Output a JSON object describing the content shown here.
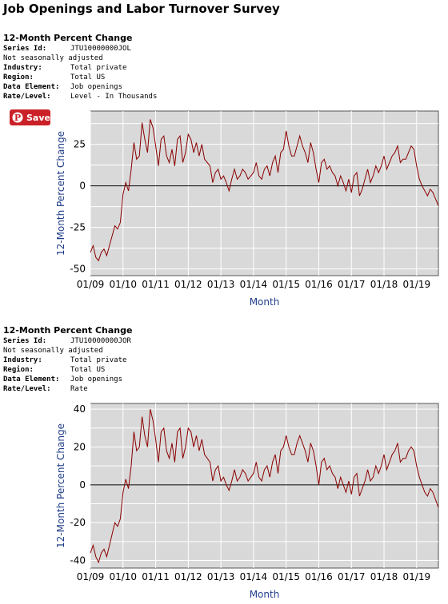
{
  "page": {
    "title": "Job Openings and Labor Turnover Survey"
  },
  "save_button": {
    "label": "Save",
    "icon": "pinterest-icon",
    "color": "#cb2027"
  },
  "sections": [
    {
      "title": "12-Month Percent Change",
      "meta": [
        {
          "key": "Series Id:",
          "value": "JTU10000000JOL"
        },
        {
          "key": "Not seasonally adjusted",
          "value": ""
        },
        {
          "key": "Industry:",
          "value": "Total private"
        },
        {
          "key": "Region:",
          "value": "Total US"
        },
        {
          "key": "Data Element:",
          "value": "Job openings"
        },
        {
          "key": "Rate/Level:",
          "value": "Level - In Thousands"
        }
      ]
    },
    {
      "title": "12-Month Percent Change",
      "meta": [
        {
          "key": "Series Id:",
          "value": "JTU10000000JOR"
        },
        {
          "key": "Not seasonally adjusted",
          "value": ""
        },
        {
          "key": "Industry:",
          "value": "Total private"
        },
        {
          "key": "Region:",
          "value": "Total US"
        },
        {
          "key": "Data Element:",
          "value": "Job openings"
        },
        {
          "key": "Rate/Level:",
          "value": "Rate"
        }
      ]
    }
  ],
  "chart_data": [
    {
      "type": "line",
      "xlabel": "Month",
      "ylabel": "12-Month Percent Change",
      "x_ticks": [
        "01/09",
        "01/10",
        "01/11",
        "01/12",
        "01/13",
        "01/14",
        "01/15",
        "01/16",
        "01/17",
        "01/18",
        "01/19"
      ],
      "x_start": "2009-01",
      "y_ticks": [
        -50,
        -25,
        0,
        25
      ],
      "ylim": [
        -54,
        45
      ],
      "grid": true,
      "background": "#d9d9d9",
      "line_color": "#8b0000",
      "series": [
        {
          "values": [
            -40,
            -36,
            -43,
            -45,
            -40,
            -38,
            -42,
            -36,
            -30,
            -24,
            -26,
            -22,
            -5,
            2,
            -3,
            10,
            26,
            16,
            18,
            38,
            28,
            20,
            40,
            35,
            24,
            12,
            28,
            30,
            18,
            14,
            22,
            12,
            28,
            30,
            14,
            20,
            31,
            28,
            20,
            26,
            18,
            25,
            16,
            14,
            12,
            2,
            8,
            10,
            4,
            6,
            2,
            -3,
            4,
            10,
            4,
            6,
            10,
            8,
            4,
            6,
            8,
            14,
            6,
            4,
            10,
            12,
            6,
            14,
            18,
            8,
            20,
            22,
            33,
            24,
            18,
            18,
            24,
            30,
            24,
            20,
            14,
            26,
            20,
            10,
            2,
            14,
            16,
            10,
            12,
            8,
            6,
            0,
            6,
            2,
            -3,
            4,
            -4,
            6,
            8,
            -6,
            -2,
            4,
            10,
            2,
            6,
            12,
            8,
            12,
            18,
            10,
            14,
            18,
            20,
            24,
            14,
            16,
            16,
            20,
            24,
            22,
            12,
            4,
            0,
            -3,
            -6,
            -2,
            -4,
            -8,
            -12
          ]
        }
      ]
    },
    {
      "type": "line",
      "xlabel": "Month",
      "ylabel": "12-Month Percent Change",
      "x_ticks": [
        "01/09",
        "01/10",
        "01/11",
        "01/12",
        "01/13",
        "01/14",
        "01/15",
        "01/16",
        "01/17",
        "01/18",
        "01/19"
      ],
      "x_start": "2009-01",
      "y_ticks": [
        -40,
        -20,
        0,
        20,
        40
      ],
      "ylim": [
        -44,
        43
      ],
      "grid": true,
      "background": "#d9d9d9",
      "line_color": "#8b0000",
      "series": [
        {
          "values": [
            -36,
            -32,
            -38,
            -41,
            -36,
            -34,
            -38,
            -32,
            -26,
            -20,
            -22,
            -18,
            -4,
            3,
            -2,
            10,
            28,
            18,
            20,
            36,
            26,
            20,
            40,
            34,
            24,
            12,
            28,
            30,
            18,
            14,
            22,
            12,
            28,
            30,
            14,
            20,
            30,
            28,
            20,
            26,
            18,
            24,
            16,
            14,
            12,
            2,
            8,
            10,
            2,
            4,
            0,
            -3,
            2,
            8,
            2,
            4,
            8,
            6,
            2,
            4,
            6,
            12,
            4,
            2,
            8,
            10,
            4,
            12,
            16,
            6,
            18,
            20,
            26,
            20,
            16,
            16,
            22,
            26,
            22,
            18,
            12,
            22,
            18,
            10,
            0,
            12,
            14,
            8,
            10,
            6,
            4,
            -2,
            4,
            0,
            -4,
            2,
            -5,
            4,
            6,
            -6,
            -2,
            2,
            8,
            2,
            4,
            10,
            6,
            10,
            16,
            8,
            12,
            16,
            18,
            22,
            12,
            14,
            14,
            18,
            20,
            18,
            10,
            4,
            0,
            -4,
            -6,
            -2,
            -4,
            -8,
            -12
          ]
        }
      ]
    }
  ]
}
